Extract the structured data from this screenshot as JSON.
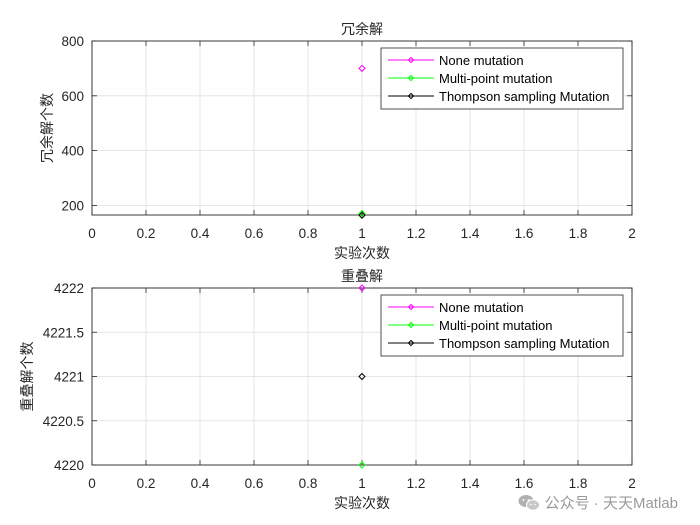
{
  "chart_data": [
    {
      "type": "scatter",
      "title": "冗余解",
      "xlabel": "实验次数",
      "ylabel": "冗余解个数",
      "xlim": [
        0,
        2
      ],
      "ylim": [
        165,
        800
      ],
      "x_ticks": [
        "0",
        "0.2",
        "0.4",
        "0.6",
        "0.8",
        "1",
        "1.2",
        "1.4",
        "1.6",
        "1.8",
        "2"
      ],
      "y_ticks": [
        {
          "value": 200,
          "label": "200"
        },
        {
          "value": 400,
          "label": "400"
        },
        {
          "value": 600,
          "label": "600"
        },
        {
          "value": 800,
          "label": "800"
        }
      ],
      "grid": true,
      "legend_position": "top-right",
      "series": [
        {
          "name": "None mutation",
          "color": "#ff00ff",
          "marker": "diamond",
          "x": [
            1
          ],
          "y": [
            700
          ]
        },
        {
          "name": "Multi-point mutation",
          "color": "#00ff00",
          "marker": "diamond",
          "x": [
            1
          ],
          "y": [
            170
          ]
        },
        {
          "name": "Thompson sampling Mutation",
          "color": "#000000",
          "marker": "diamond",
          "x": [
            1
          ],
          "y": [
            164
          ]
        }
      ]
    },
    {
      "type": "scatter",
      "title": "重叠解",
      "xlabel": "实验次数",
      "ylabel": "重叠解个数",
      "xlim": [
        0,
        2
      ],
      "ylim": [
        4220,
        4222
      ],
      "x_ticks": [
        "0",
        "0.2",
        "0.4",
        "0.6",
        "0.8",
        "1",
        "1.2",
        "1.4",
        "1.6",
        "1.8",
        "2"
      ],
      "y_ticks": [
        {
          "value": 4220,
          "label": "4220"
        },
        {
          "value": 4220.5,
          "label": "4220.5"
        },
        {
          "value": 4221,
          "label": "4221"
        },
        {
          "value": 4221.5,
          "label": "4221.5"
        },
        {
          "value": 4222,
          "label": "4222"
        }
      ],
      "grid": true,
      "legend_position": "top-right",
      "series": [
        {
          "name": "None mutation",
          "color": "#ff00ff",
          "marker": "diamond",
          "x": [
            1
          ],
          "y": [
            4222
          ]
        },
        {
          "name": "Multi-point mutation",
          "color": "#00ff00",
          "marker": "diamond",
          "x": [
            1
          ],
          "y": [
            4220
          ]
        },
        {
          "name": "Thompson sampling Mutation",
          "color": "#000000",
          "marker": "diamond",
          "x": [
            1
          ],
          "y": [
            4221
          ]
        }
      ]
    }
  ],
  "watermark": {
    "text": "公众号 · 天天Matlab",
    "icon": "wechat-icon"
  }
}
